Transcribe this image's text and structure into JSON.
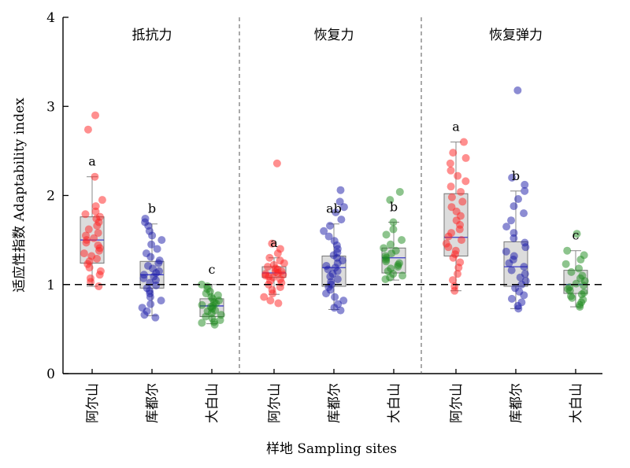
{
  "chart_data": {
    "type": "box-scatter",
    "ylabel": "适应性指数 Adaptability index",
    "xlabel": "样地 Sampling sites",
    "ylim": [
      0,
      4
    ],
    "yticks": [
      0,
      1,
      2,
      3,
      4
    ],
    "reference_line": 1,
    "panels": [
      {
        "title": "抵抗力",
        "groups": [
          {
            "site": "阿尔山",
            "color": "#ff2020",
            "letter": "a",
            "box": {
              "whisker_low": 0.98,
              "q1": 1.24,
              "median": 1.5,
              "q3": 1.76,
              "whisker_high": 2.21
            },
            "points": [
              2.9,
              2.74,
              2.21,
              1.95,
              1.88,
              1.82,
              1.79,
              1.76,
              1.74,
              1.7,
              1.66,
              1.62,
              1.58,
              1.55,
              1.52,
              1.5,
              1.47,
              1.44,
              1.41,
              1.38,
              1.35,
              1.32,
              1.29,
              1.26,
              1.23,
              1.19,
              1.15,
              1.11,
              1.07,
              1.03,
              0.98
            ]
          },
          {
            "site": "库都尔",
            "color": "#1a1aa8",
            "letter": "b",
            "box": {
              "whisker_low": 0.65,
              "q1": 0.96,
              "median": 1.11,
              "q3": 1.26,
              "whisker_high": 1.68
            },
            "points": [
              1.74,
              1.7,
              1.66,
              1.6,
              1.55,
              1.5,
              1.45,
              1.4,
              1.35,
              1.31,
              1.27,
              1.24,
              1.21,
              1.18,
              1.15,
              1.13,
              1.11,
              1.09,
              1.07,
              1.05,
              1.02,
              0.99,
              0.96,
              0.93,
              0.9,
              0.86,
              0.82,
              0.78,
              0.74,
              0.7,
              0.66,
              0.63
            ]
          },
          {
            "site": "大白山",
            "color": "#1c8a1c",
            "letter": "c",
            "box": {
              "whisker_low": 0.56,
              "q1": 0.64,
              "median": 0.76,
              "q3": 0.84,
              "whisker_high": 1.0
            },
            "points": [
              1.0,
              0.98,
              0.95,
              0.92,
              0.9,
              0.88,
              0.86,
              0.84,
              0.82,
              0.8,
              0.79,
              0.77,
              0.76,
              0.75,
              0.73,
              0.71,
              0.7,
              0.68,
              0.66,
              0.64,
              0.62,
              0.6,
              0.58,
              0.57,
              0.55
            ]
          }
        ]
      },
      {
        "title": "恢复力",
        "groups": [
          {
            "site": "阿尔山",
            "color": "#ff2020",
            "letter": "a",
            "box": {
              "whisker_low": 0.89,
              "q1": 1.08,
              "median": 1.13,
              "q3": 1.2,
              "whisker_high": 1.3
            },
            "points": [
              2.36,
              1.46,
              1.4,
              1.35,
              1.3,
              1.27,
              1.24,
              1.22,
              1.2,
              1.18,
              1.17,
              1.15,
              1.14,
              1.13,
              1.12,
              1.11,
              1.1,
              1.09,
              1.08,
              1.06,
              1.04,
              1.02,
              1.0,
              0.97,
              0.94,
              0.9,
              0.86,
              0.82,
              0.79
            ]
          },
          {
            "site": "库都尔",
            "color": "#1a1aa8",
            "letter": "ab",
            "box": {
              "whisker_low": 0.72,
              "q1": 0.98,
              "median": 1.19,
              "q3": 1.32,
              "whisker_high": 1.68
            },
            "points": [
              2.06,
              1.93,
              1.87,
              1.81,
              1.73,
              1.66,
              1.6,
              1.54,
              1.49,
              1.44,
              1.4,
              1.36,
              1.33,
              1.3,
              1.27,
              1.24,
              1.21,
              1.19,
              1.17,
              1.15,
              1.12,
              1.09,
              1.06,
              1.03,
              1.0,
              0.97,
              0.94,
              0.9,
              0.86,
              0.82,
              0.78,
              0.74,
              0.71
            ]
          },
          {
            "site": "大白山",
            "color": "#1c8a1c",
            "letter": "b",
            "box": {
              "whisker_low": 1.05,
              "q1": 1.13,
              "median": 1.3,
              "q3": 1.41,
              "whisker_high": 1.7
            },
            "points": [
              2.04,
              1.95,
              1.7,
              1.62,
              1.56,
              1.5,
              1.45,
              1.41,
              1.38,
              1.35,
              1.32,
              1.3,
              1.28,
              1.26,
              1.24,
              1.22,
              1.2,
              1.18,
              1.15,
              1.12,
              1.1,
              1.08,
              1.06
            ]
          }
        ]
      },
      {
        "title": "恢复弹力",
        "groups": [
          {
            "site": "阿尔山",
            "color": "#ff2020",
            "letter": "a",
            "box": {
              "whisker_low": 0.93,
              "q1": 1.32,
              "median": 1.53,
              "q3": 2.02,
              "whisker_high": 2.6
            },
            "points": [
              2.6,
              2.48,
              2.42,
              2.36,
              2.28,
              2.22,
              2.16,
              2.1,
              2.04,
              1.98,
              1.93,
              1.87,
              1.82,
              1.77,
              1.72,
              1.67,
              1.62,
              1.58,
              1.54,
              1.5,
              1.46,
              1.42,
              1.38,
              1.34,
              1.3,
              1.25,
              1.19,
              1.12,
              1.05,
              0.98,
              0.93
            ]
          },
          {
            "site": "库都尔",
            "color": "#1a1aa8",
            "letter": "b",
            "box": {
              "whisker_low": 0.73,
              "q1": 0.98,
              "median": 1.2,
              "q3": 1.48,
              "whisker_high": 2.05
            },
            "points": [
              3.18,
              2.2,
              2.12,
              2.05,
              1.96,
              1.88,
              1.8,
              1.72,
              1.65,
              1.58,
              1.52,
              1.47,
              1.42,
              1.37,
              1.32,
              1.28,
              1.24,
              1.2,
              1.16,
              1.12,
              1.08,
              1.04,
              1.0,
              0.96,
              0.92,
              0.88,
              0.84,
              0.8,
              0.76,
              0.73
            ]
          },
          {
            "site": "大白山",
            "color": "#1c8a1c",
            "letter": "c",
            "box": {
              "whisker_low": 0.75,
              "q1": 0.9,
              "median": 1.0,
              "q3": 1.16,
              "whisker_high": 1.38
            },
            "points": [
              1.57,
              1.38,
              1.33,
              1.28,
              1.23,
              1.18,
              1.14,
              1.1,
              1.07,
              1.04,
              1.01,
              0.99,
              0.97,
              0.95,
              0.93,
              0.91,
              0.89,
              0.87,
              0.85,
              0.83,
              0.8,
              0.77,
              0.75
            ]
          }
        ]
      }
    ]
  }
}
